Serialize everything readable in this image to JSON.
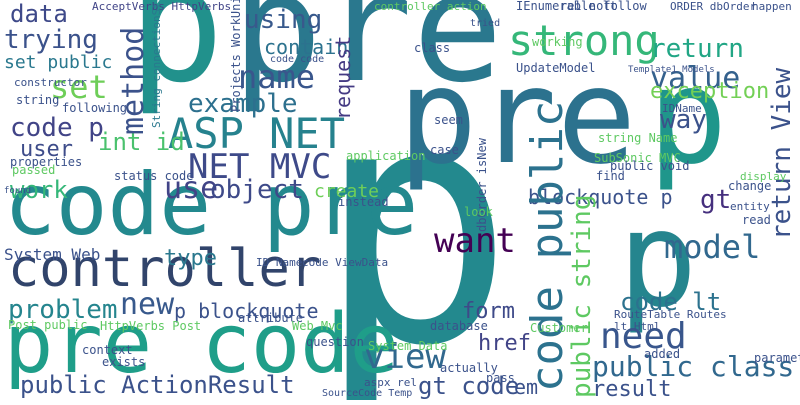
{
  "words": [
    "p",
    "pre",
    "p",
    "pre",
    "p",
    "p",
    "code pre",
    "pre code",
    "controller",
    "ASP NET",
    "NET MVC",
    "strong",
    "set",
    "name",
    "using",
    "data",
    "trying",
    "set public",
    "code p",
    "user",
    "int id",
    "work",
    "method",
    "example",
    "contain",
    "request",
    "value",
    "return",
    "exception",
    "way",
    "return View",
    "use",
    "object",
    "create",
    "want",
    "model",
    "gt",
    "blockquote p",
    "code public",
    "public string",
    "need",
    "public class",
    "result",
    "code lt",
    "view",
    "form",
    "href",
    "gt code",
    "em",
    "new",
    "type",
    "System Web",
    "problem",
    "p blockquote",
    "public ActionResult",
    "Post public",
    "AcceptVerbs HttpVerbs",
    "tried",
    "controller action",
    "IEnumerable lt",
    "rel nofollow",
    "ORDER dbOrder",
    "happen",
    "System Data",
    "SubSonic MVC",
    "string Name",
    "IDName",
    "Template1 Models",
    "following",
    "code code",
    "status code",
    "passed",
    "properties",
    "found",
    "database",
    "Customer",
    "actually",
    "pass",
    "SourceCode Temp",
    "aspx rel",
    "Projects WorkUnits",
    "String connectionString",
    "dbOrder isNew",
    "application",
    "instead",
    "case",
    "look",
    "seem",
    "class",
    "UpdateModel",
    "working",
    "RouteTable Routes",
    "lt Html",
    "parameter",
    "added",
    "string",
    "constructor",
    "HttpVerbs Post",
    "context",
    "exists",
    "attribute",
    "Web Mvc",
    "question",
    "ID Name",
    "code ViewData",
    "public void",
    "find",
    "change",
    "read",
    "entity",
    "display"
  ]
}
